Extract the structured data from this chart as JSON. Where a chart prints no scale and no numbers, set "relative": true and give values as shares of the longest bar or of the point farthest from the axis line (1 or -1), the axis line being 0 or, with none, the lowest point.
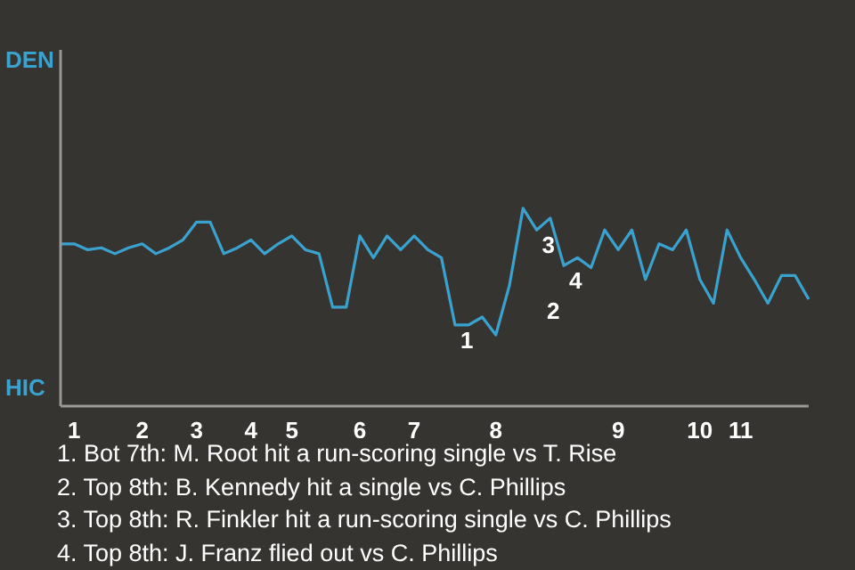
{
  "chart_data": {
    "type": "line",
    "relative": true,
    "categories": [
      null,
      "1",
      null,
      null,
      null,
      null,
      "2",
      null,
      null,
      null,
      "3",
      null,
      null,
      null,
      "4",
      null,
      null,
      "5",
      null,
      null,
      null,
      null,
      "6",
      null,
      null,
      null,
      "7",
      null,
      null,
      null,
      null,
      null,
      "8",
      null,
      null,
      null,
      null,
      null,
      null,
      null,
      null,
      "9",
      null,
      null,
      null,
      null,
      null,
      "10",
      null,
      null,
      "11",
      null,
      null,
      null,
      null,
      null
    ],
    "series": [
      {
        "color": "#3aa2cf",
        "values": [
          0.82,
          0.82,
          0.79,
          0.8,
          0.77,
          0.8,
          0.82,
          0.77,
          0.8,
          0.84,
          0.93,
          0.93,
          0.77,
          0.8,
          0.84,
          0.77,
          0.82,
          0.86,
          0.79,
          0.77,
          0.5,
          0.5,
          0.86,
          0.75,
          0.86,
          0.79,
          0.86,
          0.79,
          0.75,
          0.41,
          0.41,
          0.45,
          0.36,
          0.61,
          1,
          0.89,
          0.95,
          0.71,
          0.75,
          0.7,
          0.89,
          0.79,
          0.89,
          0.64,
          0.82,
          0.79,
          0.89,
          0.64,
          0.52,
          0.89,
          0.75,
          0.64,
          0.52,
          0.66,
          0.66,
          0.54
        ]
      }
    ],
    "marker": "none",
    "line_style": "solid",
    "annotations": [
      "DEN",
      "HIC",
      "2",
      {
        "text": "1",
        "y": 0.41
      },
      {
        "text": "3",
        "y": 0.89
      },
      {
        "text": "4",
        "y": 0.71
      },
      "1. Bot 7th: M. Root hit a run-scoring single vs T. Rise",
      "2. Top 8th: B. Kennedy hit a single vs C. Phillips",
      "3. Top 8th: R. Finkler hit a run-scoring single vs C. Phillips",
      "4. Top 8th: J. Franz flied out vs C. Phillips"
    ]
  }
}
